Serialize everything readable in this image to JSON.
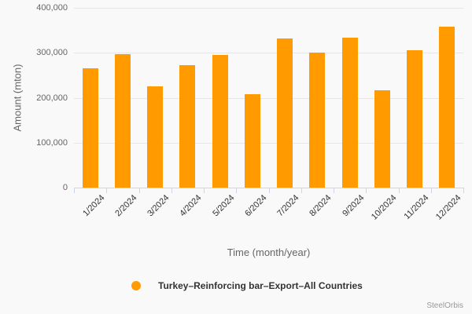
{
  "chart_data": {
    "type": "bar",
    "title": "",
    "categories": [
      "1/2024",
      "2/2024",
      "3/2024",
      "4/2024",
      "5/2024",
      "6/2024",
      "7/2024",
      "8/2024",
      "9/2024",
      "10/2024",
      "11/2024",
      "12/2024"
    ],
    "series": [
      {
        "name": "Turkey–Reinforcing bar–Export–All Countries",
        "color": "#ff9a00",
        "values": [
          265000,
          297000,
          225000,
          272000,
          295000,
          208000,
          332000,
          300000,
          334000,
          216000,
          306000,
          359000
        ]
      }
    ],
    "xlabel": "Time (month/year)",
    "ylabel": "Amount (mton)",
    "ylim": [
      0,
      400000
    ],
    "ytick_interval": 100000,
    "ytick_labels": [
      "0",
      "100,000",
      "200,000",
      "300,000",
      "400,000"
    ],
    "grid": "horizontal",
    "legend_position": "bottom-center"
  },
  "credits": "SteelOrbis",
  "colors": {
    "bar": "#ff9a00",
    "background": "#f9f9f9",
    "gridline": "#e6e6e6",
    "axis_line": "#ccd6eb",
    "axis_text": "#666666",
    "xtick_text": "#333333",
    "legend_text": "#333333",
    "credits_text": "#999999"
  }
}
